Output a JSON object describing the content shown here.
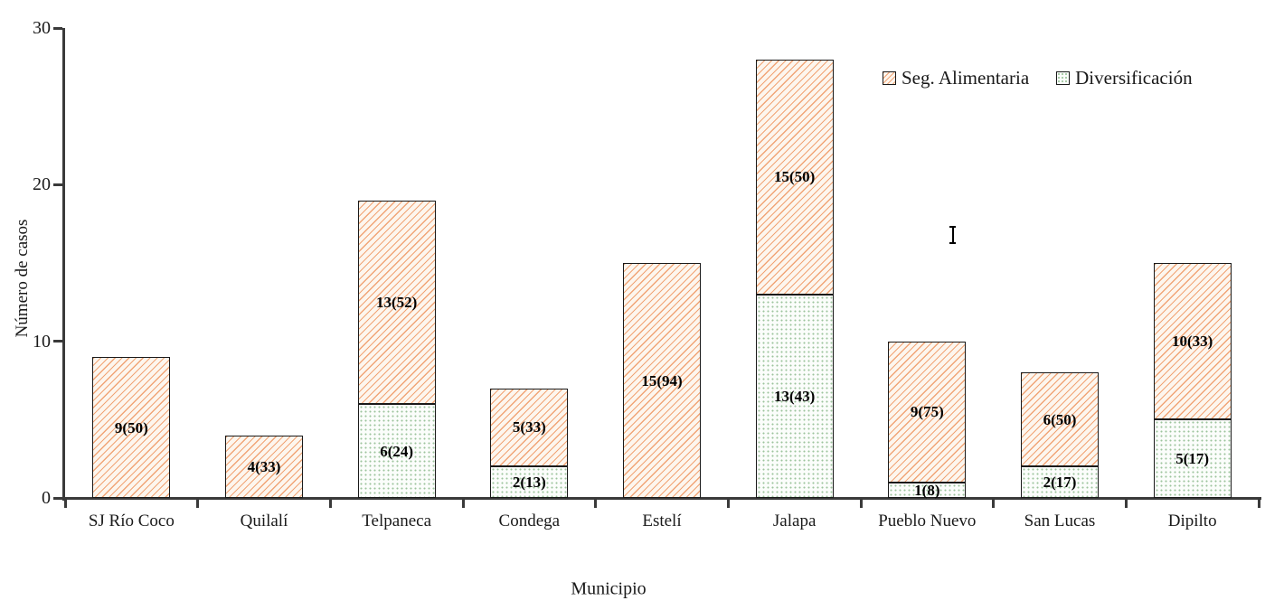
{
  "figure": {
    "ylabel": "Número de casos",
    "xlabel": "Municipio"
  },
  "legend": {
    "items": [
      {
        "label": "Seg. Alimentaria",
        "pattern": "hatch"
      },
      {
        "label": "Diversificación",
        "pattern": "dots"
      }
    ]
  },
  "chart_data": {
    "type": "bar",
    "stacked": true,
    "title": "",
    "xlabel": "Municipio",
    "ylabel": "Número de casos",
    "ylim": [
      0,
      30
    ],
    "yticks": [
      0,
      10,
      20,
      30
    ],
    "grid": false,
    "legend_position": "top-right",
    "categories": [
      "SJ Río Coco",
      "Quilalí",
      "Telpaneca",
      "Condega",
      "Estelí",
      "Jalapa",
      "Pueblo Nuevo",
      "San Lucas",
      "Dipilto"
    ],
    "series": [
      {
        "name": "Diversificación",
        "pattern": "dots",
        "stack_order": "bottom",
        "values": [
          0,
          0,
          6,
          2,
          0,
          13,
          1,
          2,
          5
        ],
        "labels": [
          "",
          "",
          "6(24)",
          "2(13)",
          "",
          "13(43)",
          "1(8)",
          "2(17)",
          "5(17)"
        ]
      },
      {
        "name": "Seg. Alimentaria",
        "pattern": "hatch",
        "stack_order": "top",
        "values": [
          9,
          4,
          13,
          5,
          15,
          15,
          9,
          6,
          10
        ],
        "labels": [
          "9(50)",
          "4(33)",
          "13(52)",
          "5(33)",
          "15(94)",
          "15(50)",
          "9(75)",
          "6(50)",
          "10(33)"
        ]
      }
    ],
    "totals": [
      9,
      4,
      19,
      7,
      15,
      28,
      10,
      8,
      15
    ],
    "colors": {
      "hatch_line": "#f0a070",
      "hatch_bg": "#fdf6ee",
      "dot_color": "#9cc49c",
      "dot_bg": "#fbfdfb",
      "bar_border": "#1a1a1a",
      "axis": "#3a3a3a"
    }
  },
  "artifacts": {
    "ibeam_cursor_note": "text-select cursor captured over plot area"
  }
}
